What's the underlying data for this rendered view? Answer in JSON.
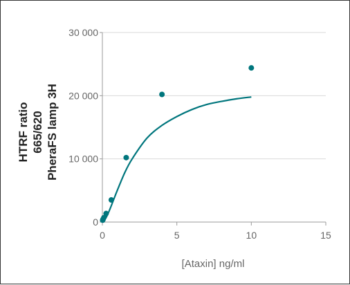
{
  "chart_data": {
    "type": "scatter",
    "title": "",
    "xlabel": "[Ataxin] ng/ml",
    "ylabel_lines": [
      "HTRF ratio",
      "665/620",
      "PheraFS lamp 3H"
    ],
    "xlim": [
      0,
      15
    ],
    "ylim": [
      0,
      30000
    ],
    "x_ticks": [
      0,
      5,
      10,
      15
    ],
    "x_tick_labels": [
      "0",
      "5",
      "10",
      "15"
    ],
    "y_ticks": [
      0,
      10000,
      20000,
      30000
    ],
    "y_tick_labels": [
      "0",
      "10 000",
      "20 000",
      "30 000"
    ],
    "grid": "horizontal",
    "series": [
      {
        "points": [
          {
            "x": 0.02,
            "y": 300
          },
          {
            "x": 0.05,
            "y": 450
          },
          {
            "x": 0.1,
            "y": 700
          },
          {
            "x": 0.25,
            "y": 1350
          },
          {
            "x": 0.6,
            "y": 3500
          },
          {
            "x": 1.6,
            "y": 10200
          },
          {
            "x": 4.0,
            "y": 20200
          },
          {
            "x": 10.0,
            "y": 24400
          }
        ],
        "fit_curve": [
          {
            "x": 0,
            "y": 0
          },
          {
            "x": 0.25,
            "y": 700
          },
          {
            "x": 0.5,
            "y": 2000
          },
          {
            "x": 0.75,
            "y": 3500
          },
          {
            "x": 1.0,
            "y": 5000
          },
          {
            "x": 1.5,
            "y": 7800
          },
          {
            "x": 2.0,
            "y": 10000
          },
          {
            "x": 3.0,
            "y": 13300
          },
          {
            "x": 4.0,
            "y": 15300
          },
          {
            "x": 5.0,
            "y": 16700
          },
          {
            "x": 6.0,
            "y": 17800
          },
          {
            "x": 7.0,
            "y": 18600
          },
          {
            "x": 8.0,
            "y": 19100
          },
          {
            "x": 9.0,
            "y": 19500
          },
          {
            "x": 10.0,
            "y": 19800
          }
        ]
      }
    ],
    "colors": {
      "series": "#00767d",
      "grid": "#d9d9d9",
      "axis": "#999999"
    }
  }
}
